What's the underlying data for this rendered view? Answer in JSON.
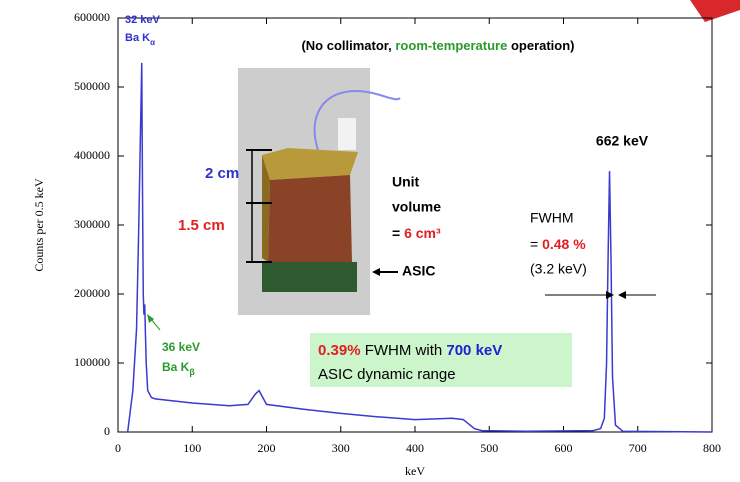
{
  "chart_data": {
    "type": "line",
    "x_label": "keV",
    "y_label": "Counts per 0.5 keV",
    "x": [
      13,
      20,
      25,
      28,
      30,
      32,
      33,
      34,
      35,
      36,
      37,
      38,
      40,
      45,
      50,
      100,
      150,
      175,
      185,
      190,
      195,
      200,
      250,
      300,
      350,
      400,
      450,
      465,
      480,
      490,
      550,
      640,
      650,
      655,
      658,
      660,
      662,
      664,
      666,
      670,
      680,
      800
    ],
    "values": [
      0,
      60000,
      150000,
      300000,
      420000,
      535000,
      350000,
      200000,
      170000,
      185000,
      140000,
      100000,
      60000,
      50000,
      48000,
      42000,
      38000,
      40000,
      55000,
      60000,
      50000,
      40000,
      33000,
      27000,
      22000,
      18000,
      20000,
      18000,
      5000,
      2000,
      1000,
      2000,
      5000,
      20000,
      100000,
      250000,
      378000,
      250000,
      80000,
      10000,
      1000,
      0
    ],
    "color": "#3a3ad0",
    "xlim": [
      0,
      800
    ],
    "xticks": [
      0,
      100,
      200,
      300,
      400,
      500,
      600,
      700,
      800
    ],
    "ylim": [
      0,
      600000
    ],
    "yticks": [
      0,
      100000,
      200000,
      300000,
      400000,
      500000,
      600000
    ],
    "annotations": {
      "ka_energy": "32 keV",
      "ka_line": {
        "text": "Ba K",
        "sub": "α"
      },
      "kb_energy": "36 keV",
      "kb_line": {
        "text": "Ba K",
        "sub": "β"
      },
      "title": [
        "(No collimator, ",
        "room-temperature",
        " operation)"
      ],
      "peak": "662 keV",
      "unit_volume": [
        "Unit",
        "volume",
        "= ",
        "6 cm³"
      ],
      "width": "2 cm",
      "height": "1.5 cm",
      "asic": "ASIC",
      "fwhm": [
        "FWHM",
        "= ",
        "0.48 %",
        "(3.2 keV)"
      ],
      "box": [
        "0.39%",
        " FWHM with ",
        "700 keV",
        "ASIC dynamic range"
      ]
    }
  }
}
